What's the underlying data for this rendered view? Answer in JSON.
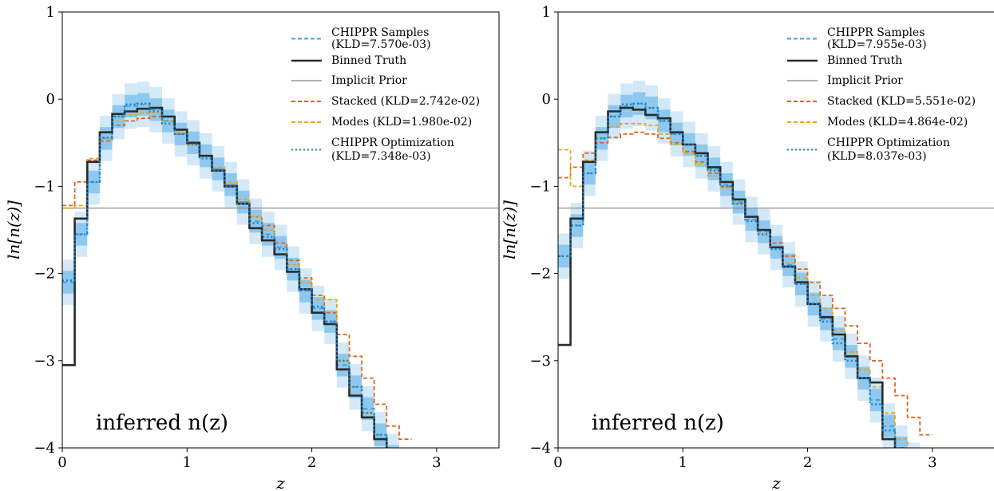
{
  "chart_data": [
    {
      "type": "line",
      "xlabel": "z",
      "ylabel": "ln[n(z)]",
      "xlim": [
        0,
        3.5
      ],
      "ylim": [
        -4,
        1
      ],
      "xticks": [
        "0",
        "1",
        "2",
        "3"
      ],
      "yticks": [
        "1",
        "0",
        "−1",
        "−2",
        "−3",
        "−4"
      ],
      "annotation": "inferred n(z)",
      "legend_position": "top-right",
      "bin_edges": [
        0.0,
        0.1,
        0.2,
        0.3,
        0.4,
        0.5,
        0.6,
        0.7,
        0.8,
        0.9,
        1.0,
        1.1,
        1.2,
        1.3,
        1.4,
        1.5,
        1.6,
        1.7,
        1.8,
        1.9,
        2.0,
        2.1,
        2.2,
        2.3,
        2.4,
        2.5,
        2.6,
        2.7,
        2.8
      ],
      "legend": [
        {
          "label_lines": [
            "CHIPPR Samples",
            "(KLD=7.570e-03)"
          ],
          "color": "#3ea6e8",
          "style": "dashed"
        },
        {
          "label_lines": [
            "Binned Truth"
          ],
          "color": "#2b2b2b",
          "style": "solid"
        },
        {
          "label_lines": [
            "Implicit Prior"
          ],
          "color": "#808080",
          "style": "solid-thin"
        },
        {
          "label_lines": [
            "Stacked (KLD=2.742e-02)"
          ],
          "color": "#e0641a",
          "style": "dashed"
        },
        {
          "label_lines": [
            "Modes (KLD=1.980e-02)"
          ],
          "color": "#e6a817",
          "style": "dashed"
        },
        {
          "label_lines": [
            "CHIPPR Optimization",
            "(KLD=7.348e-03)"
          ],
          "color": "#1e7fc6",
          "style": "dotted"
        }
      ],
      "implicit_prior": -1.25,
      "series": [
        {
          "name": "Binned Truth",
          "values": [
            -3.05,
            -1.37,
            -0.72,
            -0.38,
            -0.17,
            -0.14,
            -0.11,
            -0.1,
            -0.2,
            -0.35,
            -0.5,
            -0.65,
            -0.82,
            -1.0,
            -1.2,
            -1.48,
            -1.62,
            -1.78,
            -1.98,
            -2.18,
            -2.45,
            -2.58,
            -3.1,
            -3.4,
            -3.65,
            -3.9,
            -4.2,
            -4.4
          ]
        },
        {
          "name": "CHIPPR Samples",
          "values": [
            -2.1,
            -1.55,
            -0.95,
            -0.45,
            -0.2,
            -0.08,
            -0.06,
            -0.12,
            -0.25,
            -0.4,
            -0.5,
            -0.65,
            -0.8,
            -0.98,
            -1.18,
            -1.4,
            -1.55,
            -1.7,
            -1.95,
            -2.2,
            -2.4,
            -2.55,
            -3.05,
            -3.3,
            -3.55,
            -3.85,
            -4.1,
            -4.3
          ]
        },
        {
          "name": "Stacked",
          "values": [
            -1.22,
            -0.95,
            -0.7,
            -0.48,
            -0.3,
            -0.25,
            -0.22,
            -0.2,
            -0.25,
            -0.4,
            -0.52,
            -0.65,
            -0.8,
            -0.98,
            -1.18,
            -1.35,
            -1.45,
            -1.65,
            -1.85,
            -2.05,
            -2.25,
            -2.45,
            -2.7,
            -2.95,
            -3.2,
            -3.5,
            -3.75,
            -3.9
          ]
        },
        {
          "name": "Modes",
          "values": [
            -1.25,
            -1.22,
            -0.68,
            -0.45,
            -0.25,
            -0.18,
            -0.16,
            -0.15,
            -0.25,
            -0.38,
            -0.52,
            -0.65,
            -0.78,
            -0.95,
            -1.15,
            -1.35,
            -1.5,
            -1.7,
            -1.9,
            -2.1,
            -2.3,
            -2.3,
            -3.0,
            -3.3,
            -3.6,
            -3.9,
            -4.2,
            -4.4
          ]
        },
        {
          "name": "CHIPPR Optimization",
          "values": [
            -2.08,
            -1.55,
            -0.95,
            -0.44,
            -0.2,
            -0.06,
            -0.05,
            -0.14,
            -0.28,
            -0.4,
            -0.52,
            -0.68,
            -0.82,
            -1.0,
            -1.2,
            -1.42,
            -1.58,
            -1.72,
            -1.95,
            -2.18,
            -2.38,
            -2.55,
            -3.0,
            -3.3,
            -3.6,
            -3.85,
            -4.1,
            -4.3
          ]
        }
      ]
    },
    {
      "type": "line",
      "xlabel": "z",
      "ylabel": "ln[n(z)]",
      "xlim": [
        0,
        3.5
      ],
      "ylim": [
        -4,
        1
      ],
      "xticks": [
        "0",
        "1",
        "2",
        "3"
      ],
      "yticks": [
        "1",
        "0",
        "−1",
        "−2",
        "−3",
        "−4"
      ],
      "annotation": "inferred n(z)",
      "legend_position": "top-right",
      "bin_edges": [
        0.0,
        0.1,
        0.2,
        0.3,
        0.4,
        0.5,
        0.6,
        0.7,
        0.8,
        0.9,
        1.0,
        1.1,
        1.2,
        1.3,
        1.4,
        1.5,
        1.6,
        1.7,
        1.8,
        1.9,
        2.0,
        2.1,
        2.2,
        2.3,
        2.4,
        2.5,
        2.6,
        2.7,
        2.8,
        2.9,
        3.0
      ],
      "legend": [
        {
          "label_lines": [
            "CHIPPR Samples",
            "(KLD=7.955e-03)"
          ],
          "color": "#3ea6e8",
          "style": "dashed"
        },
        {
          "label_lines": [
            "Binned Truth"
          ],
          "color": "#2b2b2b",
          "style": "solid"
        },
        {
          "label_lines": [
            "Implicit Prior"
          ],
          "color": "#808080",
          "style": "solid-thin"
        },
        {
          "label_lines": [
            "Stacked (KLD=5.551e-02)"
          ],
          "color": "#e0641a",
          "style": "dashed"
        },
        {
          "label_lines": [
            "Modes (KLD=4.864e-02)"
          ],
          "color": "#e6a817",
          "style": "dashed"
        },
        {
          "label_lines": [
            "CHIPPR Optimization",
            "(KLD=8.037e-03)"
          ],
          "color": "#1e7fc6",
          "style": "dotted"
        }
      ],
      "implicit_prior": -1.25,
      "series": [
        {
          "name": "Binned Truth",
          "values": [
            -2.82,
            -1.37,
            -0.72,
            -0.38,
            -0.14,
            -0.1,
            -0.12,
            -0.18,
            -0.22,
            -0.38,
            -0.52,
            -0.62,
            -0.78,
            -0.95,
            -1.15,
            -1.35,
            -1.5,
            -1.7,
            -1.92,
            -2.1,
            -2.35,
            -2.5,
            -2.7,
            -2.95,
            -3.2,
            -3.25,
            -3.9,
            -4.2,
            -4.4,
            -4.6
          ]
        },
        {
          "name": "CHIPPR Samples",
          "values": [
            -1.8,
            -1.45,
            -0.85,
            -0.45,
            -0.2,
            -0.08,
            -0.05,
            -0.1,
            -0.25,
            -0.4,
            -0.52,
            -0.65,
            -0.8,
            -0.98,
            -1.18,
            -1.38,
            -1.52,
            -1.7,
            -1.9,
            -2.12,
            -2.35,
            -2.52,
            -2.75,
            -2.95,
            -3.2,
            -3.45,
            -3.75,
            -4.0,
            -4.2,
            -4.4
          ]
        },
        {
          "name": "Stacked",
          "values": [
            -0.9,
            -0.78,
            -0.62,
            -0.5,
            -0.44,
            -0.4,
            -0.38,
            -0.4,
            -0.45,
            -0.5,
            -0.6,
            -0.72,
            -0.85,
            -1.0,
            -1.2,
            -1.35,
            -1.5,
            -1.65,
            -1.8,
            -1.95,
            -2.1,
            -2.25,
            -2.4,
            -2.6,
            -2.8,
            -3.0,
            -3.2,
            -3.4,
            -3.65,
            -3.85
          ]
        },
        {
          "name": "Modes",
          "values": [
            -0.58,
            -1.0,
            -0.7,
            -0.45,
            -0.32,
            -0.28,
            -0.28,
            -0.3,
            -0.4,
            -0.52,
            -0.62,
            -0.75,
            -0.88,
            -1.02,
            -1.2,
            -1.38,
            -1.55,
            -1.7,
            -1.88,
            -2.05,
            -2.25,
            -2.4,
            -2.65,
            -2.9,
            -3.1,
            -3.3,
            -3.6,
            -3.9,
            -4.2,
            -4.4
          ]
        },
        {
          "name": "CHIPPR Optimization",
          "values": [
            -1.8,
            -1.45,
            -0.85,
            -0.45,
            -0.2,
            -0.06,
            -0.05,
            -0.1,
            -0.25,
            -0.4,
            -0.52,
            -0.65,
            -0.82,
            -1.0,
            -1.2,
            -1.4,
            -1.55,
            -1.72,
            -1.92,
            -2.12,
            -2.35,
            -2.55,
            -2.8,
            -3.0,
            -3.2,
            -3.5,
            -3.8,
            -4.05,
            -4.25,
            -4.45
          ]
        }
      ]
    }
  ]
}
